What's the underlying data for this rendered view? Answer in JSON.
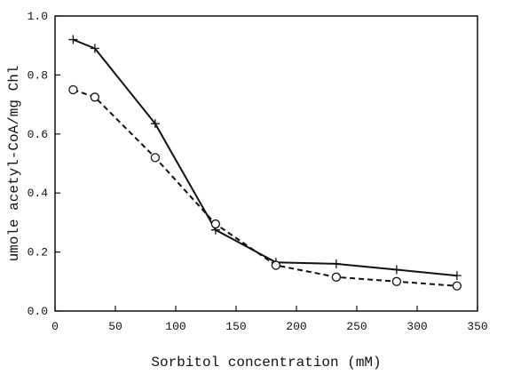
{
  "chart_data": {
    "type": "line",
    "title": "",
    "xlabel": "Sorbitol concentration (mM)",
    "ylabel": "umole acetyl-CoA/mg Chl",
    "xlim": [
      0,
      350
    ],
    "ylim": [
      0,
      1.0
    ],
    "x_ticks": [
      "0",
      "50",
      "100",
      "150",
      "200",
      "250",
      "300",
      "350"
    ],
    "y_ticks": [
      "0.0",
      "0.2",
      "0.4",
      "0.6",
      "0.8",
      "1.0"
    ],
    "grid": false,
    "legend": "none",
    "series": [
      {
        "marker": "plus",
        "line_style": "solid",
        "color": "#111111",
        "x": [
          15,
          33,
          83,
          133,
          183,
          233,
          283,
          333
        ],
        "y": [
          0.92,
          0.89,
          0.635,
          0.275,
          0.165,
          0.16,
          0.14,
          0.12
        ]
      },
      {
        "marker": "circle",
        "line_style": "dashed",
        "color": "#111111",
        "x": [
          15,
          33,
          83,
          133,
          183,
          233,
          283,
          333
        ],
        "y": [
          0.75,
          0.725,
          0.52,
          0.295,
          0.155,
          0.115,
          0.1,
          0.085
        ]
      }
    ]
  }
}
